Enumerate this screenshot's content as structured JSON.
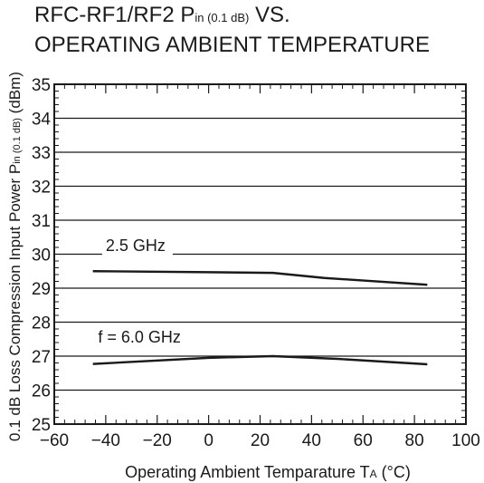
{
  "chart_data": {
    "type": "line",
    "title_line1_main": "RFC-RF1/RF2  P",
    "title_line1_sub": "in (0.1 dB)",
    "title_line1_tail": " VS.",
    "title_line2": "OPERATING AMBIENT TEMPERATURE",
    "xlabel": "Operating Ambient Temparature  T",
    "xlabel_sub": "A",
    "xlabel_unit": " (°C)",
    "ylabel": "0.1 dB Loss Compression Input Power  P",
    "ylabel_sub": "in (0.1 dB)",
    "ylabel_unit": " (dBm)",
    "xlim": [
      -60,
      100
    ],
    "ylim": [
      25,
      35
    ],
    "xticks": [
      -60,
      -40,
      -20,
      0,
      20,
      40,
      60,
      80,
      100
    ],
    "xtick_labels": [
      "−60",
      "−40",
      "−20",
      "0",
      "20",
      "40",
      "60",
      "80",
      "100"
    ],
    "yticks": [
      25,
      26,
      27,
      28,
      29,
      30,
      31,
      32,
      33,
      34,
      35
    ],
    "yminor_per_major": 4,
    "xminor_per_major": 4,
    "grid": "horizontal",
    "series": [
      {
        "name": "2.5 GHz",
        "label_at": [
          -40,
          30.1
        ],
        "x": [
          -45,
          0,
          25,
          45,
          85
        ],
        "y": [
          29.5,
          29.47,
          29.45,
          29.3,
          29.1
        ]
      },
      {
        "name": "f = 6.0 GHz",
        "label_at": [
          -43,
          27.4
        ],
        "x": [
          -45,
          0,
          25,
          50,
          85
        ],
        "y": [
          26.77,
          26.95,
          27.0,
          26.92,
          26.76
        ]
      }
    ],
    "colors": {
      "line": "#1a1a1a",
      "grid": "#1a1a1a",
      "background": "#ffffff"
    }
  }
}
